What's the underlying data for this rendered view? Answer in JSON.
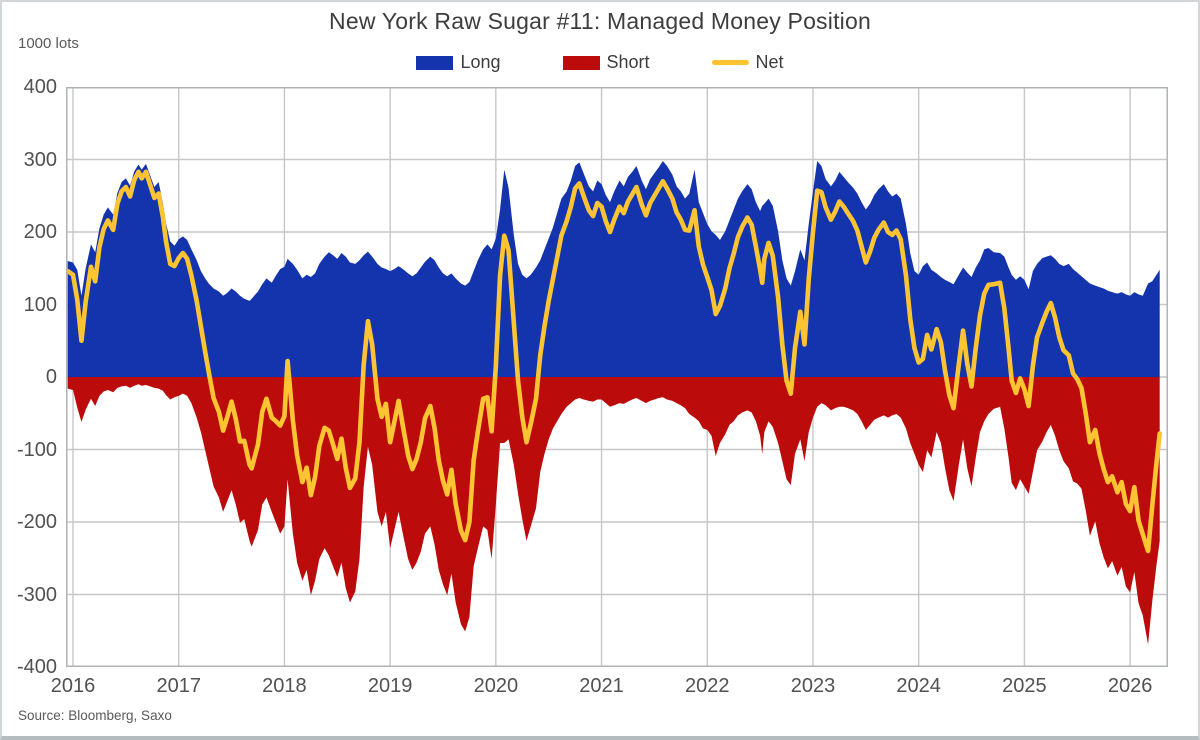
{
  "header": {
    "title": "New York Raw Sugar #11: Managed Money Position",
    "units_label": "1000 lots",
    "source": "Source: Bloomberg, Saxo"
  },
  "legend": {
    "items": [
      {
        "label": "Long",
        "color": "#1434ad",
        "swatch": "box"
      },
      {
        "label": "Short",
        "color": "#bc0b0b",
        "swatch": "box"
      },
      {
        "label": "Net",
        "color": "#fcc433",
        "swatch": "line"
      }
    ]
  },
  "colors": {
    "long_fill": "#1434ad",
    "short_fill": "#bc0b0b",
    "net_stroke": "#fcc433",
    "gridline": "#c7c7c7",
    "plot_border": "#b0b3b5",
    "text_dark": "#3d3d3d",
    "text_axis": "#515151"
  },
  "chart_data": {
    "type": "area",
    "title": "New York Raw Sugar #11: Managed Money Position",
    "ylabel": "1000 lots",
    "grid": true,
    "legend_position": "top",
    "x_axis": {
      "min": 2015.95,
      "max": 2026.36,
      "ticks": [
        2016,
        2017,
        2018,
        2019,
        2020,
        2021,
        2022,
        2023,
        2024,
        2025,
        2026
      ]
    },
    "y_axis": {
      "min": -400,
      "max": 400,
      "step": 100,
      "ticks": [
        400,
        300,
        200,
        100,
        0,
        -100,
        -200,
        -300,
        -400
      ]
    },
    "series_meta": [
      {
        "name": "Long",
        "type": "area",
        "sign": "positive"
      },
      {
        "name": "Short",
        "type": "area",
        "sign": "negative"
      },
      {
        "name": "Net",
        "type": "line"
      }
    ],
    "columns": [
      "year_decimal",
      "long",
      "short",
      "net"
    ],
    "points": [
      [
        2015.95,
        160,
        -16,
        146
      ],
      [
        2016.0,
        158,
        -18,
        141
      ],
      [
        2016.04,
        148,
        -42,
        107
      ],
      [
        2016.08,
        112,
        -62,
        50
      ],
      [
        2016.12,
        150,
        -45,
        104
      ],
      [
        2016.17,
        183,
        -30,
        152
      ],
      [
        2016.21,
        172,
        -40,
        132
      ],
      [
        2016.25,
        205,
        -26,
        179
      ],
      [
        2016.29,
        224,
        -20,
        204
      ],
      [
        2016.33,
        234,
        -18,
        216
      ],
      [
        2016.38,
        224,
        -21,
        203
      ],
      [
        2016.42,
        254,
        -15,
        239
      ],
      [
        2016.46,
        269,
        -13,
        256
      ],
      [
        2016.5,
        274,
        -12,
        262
      ],
      [
        2016.54,
        264,
        -15,
        249
      ],
      [
        2016.58,
        284,
        -12,
        272
      ],
      [
        2016.62,
        293,
        -10,
        283
      ],
      [
        2016.65,
        286,
        -12,
        274
      ],
      [
        2016.69,
        294,
        -11,
        283
      ],
      [
        2016.73,
        278,
        -13,
        265
      ],
      [
        2016.77,
        262,
        -15,
        247
      ],
      [
        2016.81,
        269,
        -16,
        253
      ],
      [
        2016.85,
        240,
        -19,
        221
      ],
      [
        2016.88,
        212,
        -25,
        187
      ],
      [
        2016.92,
        187,
        -31,
        156
      ],
      [
        2016.96,
        181,
        -28,
        153
      ],
      [
        2017.0,
        190,
        -26,
        164
      ],
      [
        2017.04,
        194,
        -23,
        171
      ],
      [
        2017.08,
        189,
        -26,
        163
      ],
      [
        2017.12,
        176,
        -36,
        140
      ],
      [
        2017.17,
        161,
        -56,
        105
      ],
      [
        2017.21,
        146,
        -76,
        70
      ],
      [
        2017.25,
        136,
        -101,
        35
      ],
      [
        2017.29,
        128,
        -126,
        2
      ],
      [
        2017.33,
        122,
        -151,
        -29
      ],
      [
        2017.38,
        118,
        -166,
        -48
      ],
      [
        2017.42,
        112,
        -186,
        -74
      ],
      [
        2017.46,
        116,
        -171,
        -55
      ],
      [
        2017.5,
        122,
        -156,
        -34
      ],
      [
        2017.54,
        118,
        -176,
        -58
      ],
      [
        2017.58,
        112,
        -201,
        -89
      ],
      [
        2017.62,
        108,
        -196,
        -88
      ],
      [
        2017.67,
        105,
        -226,
        -121
      ],
      [
        2017.69,
        108,
        -234,
        -126
      ],
      [
        2017.75,
        118,
        -211,
        -93
      ],
      [
        2017.79,
        128,
        -176,
        -48
      ],
      [
        2017.83,
        136,
        -166,
        -30
      ],
      [
        2017.88,
        130,
        -186,
        -56
      ],
      [
        2017.92,
        140,
        -201,
        -61
      ],
      [
        2017.96,
        149,
        -216,
        -67
      ],
      [
        2018.0,
        152,
        -206,
        -54
      ],
      [
        2018.03,
        163,
        -141,
        22
      ],
      [
        2018.08,
        156,
        -216,
        -60
      ],
      [
        2018.12,
        148,
        -256,
        -108
      ],
      [
        2018.17,
        136,
        -281,
        -145
      ],
      [
        2018.21,
        141,
        -266,
        -125
      ],
      [
        2018.25,
        138,
        -301,
        -163
      ],
      [
        2018.29,
        143,
        -281,
        -138
      ],
      [
        2018.33,
        156,
        -251,
        -95
      ],
      [
        2018.38,
        166,
        -236,
        -70
      ],
      [
        2018.42,
        172,
        -246,
        -74
      ],
      [
        2018.46,
        168,
        -261,
        -93
      ],
      [
        2018.5,
        163,
        -276,
        -113
      ],
      [
        2018.54,
        171,
        -256,
        -85
      ],
      [
        2018.58,
        166,
        -291,
        -125
      ],
      [
        2018.62,
        158,
        -311,
        -153
      ],
      [
        2018.67,
        156,
        -296,
        -140
      ],
      [
        2018.71,
        161,
        -251,
        -90
      ],
      [
        2018.75,
        168,
        -151,
        17
      ],
      [
        2018.79,
        173,
        -96,
        77
      ],
      [
        2018.83,
        166,
        -121,
        45
      ],
      [
        2018.88,
        156,
        -186,
        -30
      ],
      [
        2018.92,
        151,
        -206,
        -55
      ],
      [
        2018.96,
        149,
        -186,
        -37
      ],
      [
        2019.0,
        146,
        -236,
        -90
      ],
      [
        2019.04,
        149,
        -211,
        -62
      ],
      [
        2019.08,
        153,
        -186,
        -33
      ],
      [
        2019.12,
        149,
        -216,
        -67
      ],
      [
        2019.17,
        143,
        -251,
        -108
      ],
      [
        2019.21,
        139,
        -266,
        -127
      ],
      [
        2019.25,
        143,
        -256,
        -113
      ],
      [
        2019.29,
        151,
        -241,
        -90
      ],
      [
        2019.33,
        159,
        -216,
        -57
      ],
      [
        2019.38,
        166,
        -206,
        -40
      ],
      [
        2019.42,
        161,
        -231,
        -70
      ],
      [
        2019.46,
        151,
        -266,
        -115
      ],
      [
        2019.5,
        143,
        -286,
        -143
      ],
      [
        2019.54,
        139,
        -301,
        -162
      ],
      [
        2019.58,
        143,
        -271,
        -128
      ],
      [
        2019.62,
        136,
        -311,
        -175
      ],
      [
        2019.67,
        129,
        -341,
        -212
      ],
      [
        2019.71,
        126,
        -351,
        -225
      ],
      [
        2019.75,
        131,
        -331,
        -200
      ],
      [
        2019.79,
        146,
        -261,
        -115
      ],
      [
        2019.83,
        161,
        -236,
        -75
      ],
      [
        2019.88,
        176,
        -206,
        -30
      ],
      [
        2019.92,
        183,
        -211,
        -28
      ],
      [
        2019.96,
        176,
        -251,
        -75
      ],
      [
        2020.0,
        191,
        -176,
        15
      ],
      [
        2020.04,
        231,
        -91,
        140
      ],
      [
        2020.08,
        286,
        -91,
        195
      ],
      [
        2020.12,
        261,
        -86,
        175
      ],
      [
        2020.17,
        196,
        -121,
        75
      ],
      [
        2020.21,
        156,
        -161,
        -5
      ],
      [
        2020.25,
        141,
        -196,
        -55
      ],
      [
        2020.29,
        136,
        -226,
        -90
      ],
      [
        2020.33,
        141,
        -206,
        -65
      ],
      [
        2020.38,
        151,
        -181,
        -30
      ],
      [
        2020.42,
        161,
        -131,
        30
      ],
      [
        2020.46,
        176,
        -106,
        70
      ],
      [
        2020.5,
        191,
        -86,
        105
      ],
      [
        2020.54,
        206,
        -71,
        135
      ],
      [
        2020.58,
        226,
        -61,
        165
      ],
      [
        2020.62,
        246,
        -51,
        195
      ],
      [
        2020.67,
        256,
        -41,
        215
      ],
      [
        2020.71,
        271,
        -36,
        235
      ],
      [
        2020.75,
        291,
        -31,
        260
      ],
      [
        2020.79,
        296,
        -29,
        267
      ],
      [
        2020.83,
        281,
        -31,
        250
      ],
      [
        2020.88,
        263,
        -33,
        230
      ],
      [
        2020.92,
        256,
        -34,
        222
      ],
      [
        2020.96,
        271,
        -31,
        240
      ],
      [
        2021.0,
        266,
        -31,
        235
      ],
      [
        2021.04,
        251,
        -36,
        215
      ],
      [
        2021.08,
        241,
        -41,
        200
      ],
      [
        2021.12,
        256,
        -39,
        217
      ],
      [
        2021.17,
        271,
        -36,
        235
      ],
      [
        2021.21,
        263,
        -37,
        226
      ],
      [
        2021.25,
        276,
        -34,
        242
      ],
      [
        2021.29,
        283,
        -31,
        252
      ],
      [
        2021.33,
        291,
        -29,
        262
      ],
      [
        2021.38,
        271,
        -33,
        238
      ],
      [
        2021.42,
        259,
        -36,
        223
      ],
      [
        2021.46,
        273,
        -33,
        240
      ],
      [
        2021.5,
        281,
        -31,
        250
      ],
      [
        2021.54,
        289,
        -29,
        260
      ],
      [
        2021.58,
        298,
        -28,
        270
      ],
      [
        2021.62,
        291,
        -31,
        260
      ],
      [
        2021.67,
        279,
        -33,
        246
      ],
      [
        2021.71,
        263,
        -36,
        227
      ],
      [
        2021.75,
        256,
        -39,
        217
      ],
      [
        2021.79,
        246,
        -43,
        203
      ],
      [
        2021.83,
        253,
        -51,
        202
      ],
      [
        2021.88,
        286,
        -56,
        230
      ],
      [
        2021.92,
        241,
        -61,
        180
      ],
      [
        2021.96,
        226,
        -71,
        155
      ],
      [
        2022.0,
        211,
        -73,
        138
      ],
      [
        2022.04,
        201,
        -81,
        120
      ],
      [
        2022.08,
        196,
        -109,
        87
      ],
      [
        2022.12,
        189,
        -91,
        98
      ],
      [
        2022.17,
        201,
        -79,
        122
      ],
      [
        2022.21,
        216,
        -66,
        150
      ],
      [
        2022.25,
        231,
        -61,
        170
      ],
      [
        2022.29,
        246,
        -53,
        193
      ],
      [
        2022.33,
        256,
        -49,
        207
      ],
      [
        2022.38,
        266,
        -46,
        220
      ],
      [
        2022.42,
        259,
        -49,
        210
      ],
      [
        2022.46,
        241,
        -61,
        180
      ],
      [
        2022.5,
        229,
        -81,
        148
      ],
      [
        2022.52,
        236,
        -106,
        130
      ],
      [
        2022.54,
        239,
        -76,
        163
      ],
      [
        2022.58,
        246,
        -61,
        185
      ],
      [
        2022.62,
        236,
        -69,
        167
      ],
      [
        2022.67,
        201,
        -91,
        110
      ],
      [
        2022.71,
        161,
        -116,
        45
      ],
      [
        2022.75,
        136,
        -141,
        -5
      ],
      [
        2022.79,
        126,
        -149,
        -23
      ],
      [
        2022.83,
        146,
        -106,
        40
      ],
      [
        2022.88,
        176,
        -86,
        90
      ],
      [
        2022.92,
        161,
        -116,
        45
      ],
      [
        2022.96,
        211,
        -76,
        135
      ],
      [
        2023.0,
        256,
        -56,
        200
      ],
      [
        2023.04,
        298,
        -41,
        257
      ],
      [
        2023.08,
        291,
        -36,
        255
      ],
      [
        2023.12,
        273,
        -39,
        234
      ],
      [
        2023.17,
        263,
        -46,
        217
      ],
      [
        2023.21,
        271,
        -43,
        228
      ],
      [
        2023.25,
        283,
        -41,
        242
      ],
      [
        2023.29,
        276,
        -41,
        235
      ],
      [
        2023.33,
        269,
        -43,
        226
      ],
      [
        2023.38,
        261,
        -46,
        215
      ],
      [
        2023.42,
        253,
        -51,
        202
      ],
      [
        2023.46,
        241,
        -61,
        180
      ],
      [
        2023.5,
        231,
        -73,
        158
      ],
      [
        2023.54,
        239,
        -66,
        173
      ],
      [
        2023.58,
        251,
        -59,
        192
      ],
      [
        2023.62,
        259,
        -56,
        203
      ],
      [
        2023.67,
        266,
        -53,
        213
      ],
      [
        2023.71,
        256,
        -56,
        200
      ],
      [
        2023.75,
        249,
        -53,
        196
      ],
      [
        2023.79,
        253,
        -51,
        202
      ],
      [
        2023.83,
        246,
        -56,
        190
      ],
      [
        2023.88,
        211,
        -71,
        140
      ],
      [
        2023.92,
        171,
        -91,
        80
      ],
      [
        2023.96,
        146,
        -106,
        40
      ],
      [
        2024.0,
        141,
        -121,
        20
      ],
      [
        2024.04,
        153,
        -131,
        25
      ],
      [
        2024.08,
        158,
        -101,
        58
      ],
      [
        2024.12,
        148,
        -111,
        38
      ],
      [
        2024.17,
        143,
        -76,
        66
      ],
      [
        2024.21,
        138,
        -91,
        48
      ],
      [
        2024.25,
        134,
        -126,
        8
      ],
      [
        2024.29,
        131,
        -156,
        -25
      ],
      [
        2024.33,
        128,
        -171,
        -43
      ],
      [
        2024.38,
        141,
        -121,
        18
      ],
      [
        2024.42,
        151,
        -86,
        64
      ],
      [
        2024.46,
        144,
        -126,
        18
      ],
      [
        2024.5,
        138,
        -151,
        -13
      ],
      [
        2024.54,
        151,
        -111,
        40
      ],
      [
        2024.58,
        161,
        -76,
        85
      ],
      [
        2024.62,
        176,
        -61,
        115
      ],
      [
        2024.66,
        178,
        -51,
        127
      ],
      [
        2024.71,
        172,
        -44,
        128
      ],
      [
        2024.77,
        171,
        -41,
        130
      ],
      [
        2024.81,
        166,
        -71,
        95
      ],
      [
        2024.85,
        151,
        -111,
        40
      ],
      [
        2024.88,
        141,
        -146,
        -5
      ],
      [
        2024.92,
        134,
        -156,
        -22
      ],
      [
        2024.96,
        139,
        -141,
        -2
      ],
      [
        2025.0,
        134,
        -151,
        -17
      ],
      [
        2025.04,
        121,
        -161,
        -40
      ],
      [
        2025.08,
        146,
        -131,
        15
      ],
      [
        2025.12,
        156,
        -101,
        55
      ],
      [
        2025.17,
        164,
        -89,
        75
      ],
      [
        2025.21,
        166,
        -76,
        90
      ],
      [
        2025.25,
        168,
        -66,
        102
      ],
      [
        2025.29,
        163,
        -81,
        82
      ],
      [
        2025.33,
        156,
        -101,
        55
      ],
      [
        2025.37,
        153,
        -116,
        37
      ],
      [
        2025.42,
        156,
        -126,
        30
      ],
      [
        2025.46,
        149,
        -144,
        5
      ],
      [
        2025.5,
        144,
        -147,
        -3
      ],
      [
        2025.54,
        139,
        -154,
        -15
      ],
      [
        2025.58,
        134,
        -184,
        -50
      ],
      [
        2025.62,
        129,
        -219,
        -90
      ],
      [
        2025.67,
        126,
        -199,
        -73
      ],
      [
        2025.71,
        124,
        -229,
        -105
      ],
      [
        2025.75,
        122,
        -249,
        -127
      ],
      [
        2025.79,
        119,
        -264,
        -145
      ],
      [
        2025.83,
        117,
        -254,
        -137
      ],
      [
        2025.88,
        115,
        -274,
        -159
      ],
      [
        2025.92,
        117,
        -262,
        -145
      ],
      [
        2025.96,
        114,
        -289,
        -175
      ],
      [
        2026.0,
        112,
        -297,
        -185
      ],
      [
        2026.04,
        117,
        -269,
        -152
      ],
      [
        2026.08,
        114,
        -312,
        -198
      ],
      [
        2026.12,
        112,
        -329,
        -217
      ],
      [
        2026.17,
        129,
        -369,
        -240
      ],
      [
        2026.21,
        132,
        -309,
        -177
      ],
      [
        2026.25,
        141,
        -259,
        -118
      ],
      [
        2026.28,
        148,
        -226,
        -78
      ]
    ]
  }
}
